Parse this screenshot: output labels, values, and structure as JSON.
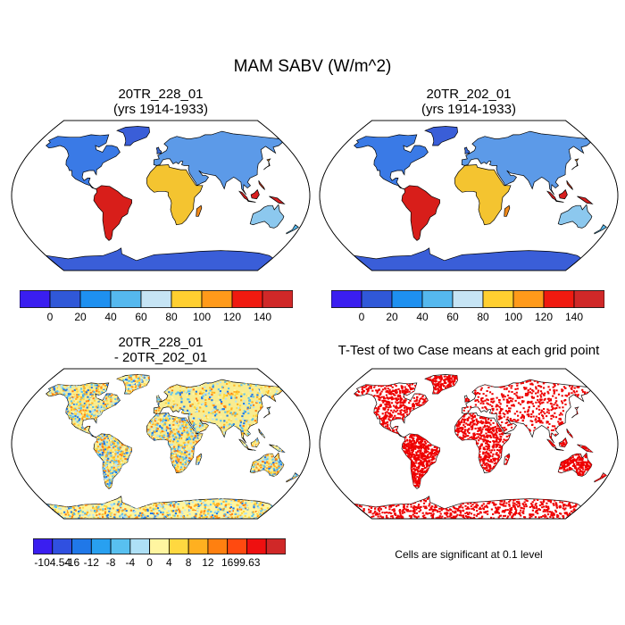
{
  "title": "MAM SABV (W/m^2)",
  "panels": [
    {
      "title_line1": "20TR_228_01",
      "title_line2": "(yrs 1914-1933)"
    },
    {
      "title_line1": "20TR_202_01",
      "title_line2": "(yrs 1914-1933)"
    },
    {
      "title_line1": "20TR_228_01",
      "title_line2": "- 20TR_202_01"
    },
    {
      "title_line1": "T-Test of two Case means at each grid point",
      "title_line2": ""
    }
  ],
  "colorbar_abs": {
    "colors": [
      "#3a1ef0",
      "#3058d8",
      "#1e90f0",
      "#55b8ee",
      "#c6e4f4",
      "#ffcf30",
      "#ff9a1a",
      "#f01a10",
      "#d02828"
    ],
    "labels": [
      "0",
      "20",
      "40",
      "60",
      "80",
      "100",
      "120",
      "140"
    ]
  },
  "colorbar_diff": {
    "colors": [
      "#3a1ef0",
      "#3050e0",
      "#2078e8",
      "#28a0f0",
      "#58c0f0",
      "#aee0f6",
      "#fff5a0",
      "#ffd840",
      "#ffb020",
      "#ff8010",
      "#ff4a10",
      "#ee1010",
      "#d02828"
    ],
    "labels": [
      "-104.54",
      "-16",
      "-12",
      "-8",
      "-4",
      "0",
      "4",
      "8",
      "12",
      "16",
      "99.63"
    ]
  },
  "ttest_note": "Cells are significant at 0.1 level",
  "colors": {
    "significant": "#ee0000",
    "land_outline": "#000000"
  }
}
